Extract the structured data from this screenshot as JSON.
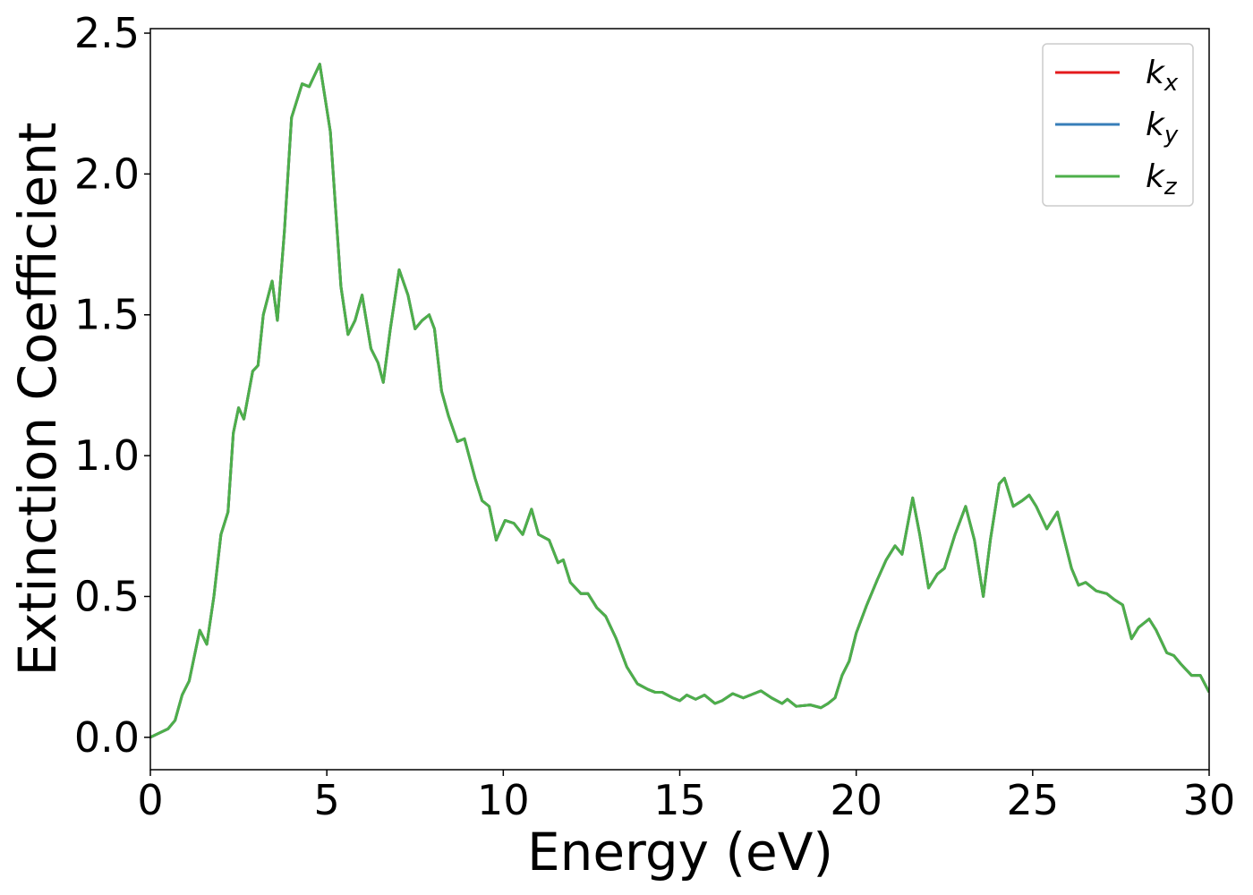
{
  "chart_data": {
    "type": "line",
    "xlabel": "Energy (eV)",
    "ylabel": "Extinction Coefficient",
    "xlim": [
      0,
      30
    ],
    "ylim": [
      -0.115,
      2.516
    ],
    "xticks": [
      0,
      5,
      10,
      15,
      20,
      25,
      30
    ],
    "yticks": [
      {
        "value": 0,
        "label": "0.0"
      },
      0.5,
      {
        "value": 1,
        "label": "1.0"
      },
      1.5,
      {
        "value": 2,
        "label": "2.0"
      },
      2.5
    ],
    "legend": "upper right",
    "grid": false,
    "x": [
      0,
      0.5,
      0.7,
      0.9,
      1.1,
      1.4,
      1.6,
      1.8,
      2.0,
      2.2,
      2.35,
      2.5,
      2.65,
      2.9,
      3.05,
      3.2,
      3.45,
      3.6,
      3.8,
      4.0,
      4.3,
      4.5,
      4.8,
      5.1,
      5.4,
      5.6,
      5.8,
      6.0,
      6.25,
      6.45,
      6.6,
      6.8,
      7.05,
      7.3,
      7.5,
      7.7,
      7.9,
      8.05,
      8.25,
      8.45,
      8.7,
      8.9,
      9.2,
      9.4,
      9.6,
      9.8,
      10.05,
      10.3,
      10.55,
      10.8,
      11.0,
      11.3,
      11.55,
      11.7,
      11.9,
      12.2,
      12.4,
      12.65,
      12.9,
      13.2,
      13.5,
      13.8,
      14.1,
      14.3,
      14.5,
      14.8,
      15.0,
      15.2,
      15.45,
      15.7,
      16.0,
      16.2,
      16.5,
      16.8,
      17.0,
      17.3,
      17.6,
      17.9,
      18.05,
      18.3,
      18.7,
      19.0,
      19.2,
      19.4,
      19.6,
      19.8,
      20.0,
      20.3,
      20.6,
      20.85,
      21.1,
      21.3,
      21.6,
      21.8,
      22.05,
      22.3,
      22.5,
      22.8,
      23.1,
      23.35,
      23.6,
      23.8,
      24.05,
      24.2,
      24.45,
      24.7,
      24.9,
      25.1,
      25.4,
      25.7,
      25.9,
      26.1,
      26.3,
      26.5,
      26.8,
      27.1,
      27.3,
      27.55,
      27.8,
      28.0,
      28.3,
      28.5,
      28.8,
      29.0,
      29.2,
      29.5,
      29.75,
      30.0
    ],
    "series": [
      {
        "name": "kx",
        "color": "#e41a1c",
        "values": [
          0,
          0.03,
          0.06,
          0.15,
          0.2,
          0.38,
          0.33,
          0.5,
          0.72,
          0.8,
          1.08,
          1.17,
          1.13,
          1.3,
          1.32,
          1.5,
          1.62,
          1.48,
          1.8,
          2.2,
          2.32,
          2.31,
          2.39,
          2.15,
          1.6,
          1.43,
          1.48,
          1.57,
          1.38,
          1.33,
          1.26,
          1.45,
          1.66,
          1.57,
          1.45,
          1.48,
          1.5,
          1.45,
          1.23,
          1.14,
          1.05,
          1.06,
          0.92,
          0.84,
          0.82,
          0.7,
          0.77,
          0.76,
          0.72,
          0.81,
          0.72,
          0.7,
          0.62,
          0.63,
          0.55,
          0.51,
          0.51,
          0.46,
          0.43,
          0.35,
          0.25,
          0.19,
          0.17,
          0.16,
          0.16,
          0.14,
          0.13,
          0.15,
          0.135,
          0.15,
          0.12,
          0.13,
          0.155,
          0.14,
          0.15,
          0.165,
          0.14,
          0.12,
          0.135,
          0.11,
          0.115,
          0.105,
          0.12,
          0.14,
          0.22,
          0.27,
          0.37,
          0.47,
          0.56,
          0.63,
          0.68,
          0.65,
          0.85,
          0.72,
          0.53,
          0.58,
          0.6,
          0.72,
          0.82,
          0.7,
          0.5,
          0.7,
          0.9,
          0.92,
          0.82,
          0.84,
          0.86,
          0.82,
          0.74,
          0.8,
          0.7,
          0.6,
          0.54,
          0.55,
          0.52,
          0.51,
          0.49,
          0.47,
          0.35,
          0.39,
          0.42,
          0.38,
          0.3,
          0.29,
          0.26,
          0.22,
          0.22,
          0.16
        ]
      },
      {
        "name": "ky",
        "color": "#377eb8",
        "values": [
          0,
          0.03,
          0.06,
          0.15,
          0.2,
          0.38,
          0.33,
          0.5,
          0.72,
          0.8,
          1.08,
          1.17,
          1.13,
          1.3,
          1.32,
          1.5,
          1.62,
          1.48,
          1.8,
          2.2,
          2.32,
          2.31,
          2.39,
          2.15,
          1.6,
          1.43,
          1.48,
          1.57,
          1.38,
          1.33,
          1.26,
          1.45,
          1.66,
          1.57,
          1.45,
          1.48,
          1.5,
          1.45,
          1.23,
          1.14,
          1.05,
          1.06,
          0.92,
          0.84,
          0.82,
          0.7,
          0.77,
          0.76,
          0.72,
          0.81,
          0.72,
          0.7,
          0.62,
          0.63,
          0.55,
          0.51,
          0.51,
          0.46,
          0.43,
          0.35,
          0.25,
          0.19,
          0.17,
          0.16,
          0.16,
          0.14,
          0.13,
          0.15,
          0.135,
          0.15,
          0.12,
          0.13,
          0.155,
          0.14,
          0.15,
          0.165,
          0.14,
          0.12,
          0.135,
          0.11,
          0.115,
          0.105,
          0.12,
          0.14,
          0.22,
          0.27,
          0.37,
          0.47,
          0.56,
          0.63,
          0.68,
          0.65,
          0.85,
          0.72,
          0.53,
          0.58,
          0.6,
          0.72,
          0.82,
          0.7,
          0.5,
          0.7,
          0.9,
          0.92,
          0.82,
          0.84,
          0.86,
          0.82,
          0.74,
          0.8,
          0.7,
          0.6,
          0.54,
          0.55,
          0.52,
          0.51,
          0.49,
          0.47,
          0.35,
          0.39,
          0.42,
          0.38,
          0.3,
          0.29,
          0.26,
          0.22,
          0.22,
          0.16
        ]
      },
      {
        "name": "kz",
        "color": "#4daf4a",
        "values": [
          0,
          0.03,
          0.06,
          0.15,
          0.2,
          0.38,
          0.33,
          0.5,
          0.72,
          0.8,
          1.08,
          1.17,
          1.13,
          1.3,
          1.32,
          1.5,
          1.62,
          1.48,
          1.8,
          2.2,
          2.32,
          2.31,
          2.39,
          2.15,
          1.6,
          1.43,
          1.48,
          1.57,
          1.38,
          1.33,
          1.26,
          1.45,
          1.66,
          1.57,
          1.45,
          1.48,
          1.5,
          1.45,
          1.23,
          1.14,
          1.05,
          1.06,
          0.92,
          0.84,
          0.82,
          0.7,
          0.77,
          0.76,
          0.72,
          0.81,
          0.72,
          0.7,
          0.62,
          0.63,
          0.55,
          0.51,
          0.51,
          0.46,
          0.43,
          0.35,
          0.25,
          0.19,
          0.17,
          0.16,
          0.16,
          0.14,
          0.13,
          0.15,
          0.135,
          0.15,
          0.12,
          0.13,
          0.155,
          0.14,
          0.15,
          0.165,
          0.14,
          0.12,
          0.135,
          0.11,
          0.115,
          0.105,
          0.12,
          0.14,
          0.22,
          0.27,
          0.37,
          0.47,
          0.56,
          0.63,
          0.68,
          0.65,
          0.85,
          0.72,
          0.53,
          0.58,
          0.6,
          0.72,
          0.82,
          0.7,
          0.5,
          0.7,
          0.9,
          0.92,
          0.82,
          0.84,
          0.86,
          0.82,
          0.74,
          0.8,
          0.7,
          0.6,
          0.54,
          0.55,
          0.52,
          0.51,
          0.49,
          0.47,
          0.35,
          0.39,
          0.42,
          0.38,
          0.3,
          0.29,
          0.26,
          0.22,
          0.22,
          0.16
        ]
      }
    ]
  }
}
